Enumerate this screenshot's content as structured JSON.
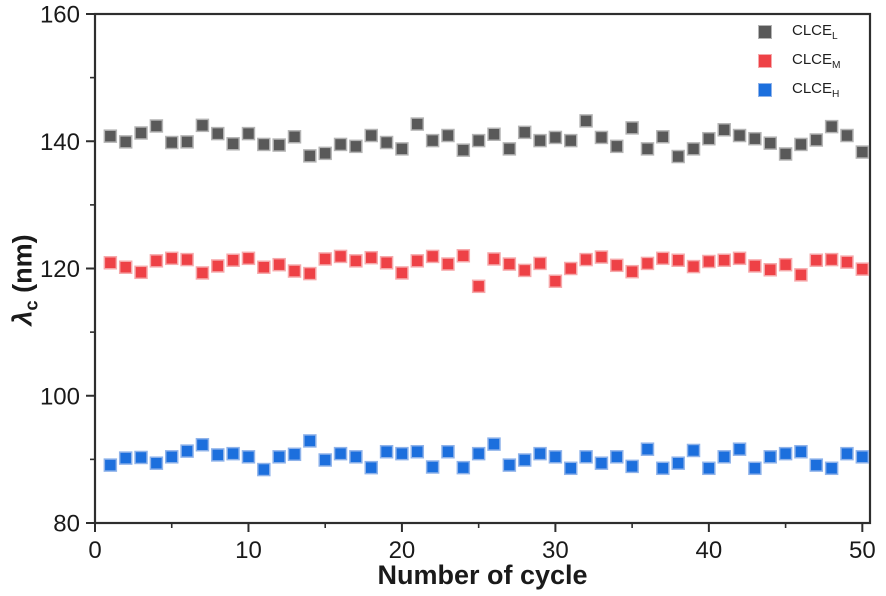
{
  "figure": {
    "background": "#ffffff",
    "text_color": "#1a1a1a",
    "frame_color": "#2e2e2e"
  },
  "axes": {
    "xlabel": "Number of cycle",
    "ylabel_symbol": "λ",
    "ylabel_sub": "c",
    "ylabel_suffix": " (nm)"
  },
  "chart_data": {
    "type": "scatter",
    "title": "",
    "xlabel": "Number of cycle",
    "ylabel": "λc (nm)",
    "xlim": [
      0,
      50.5
    ],
    "ylim": [
      80,
      160
    ],
    "x_major_ticks": [
      0,
      10,
      20,
      30,
      40,
      50
    ],
    "x_minor_step": 5,
    "y_major_ticks": [
      80,
      100,
      120,
      140,
      160
    ],
    "y_minor_step": 10,
    "grid": false,
    "legend_position": "top-right",
    "marker": "square",
    "marker_size_px": 12,
    "x_start": 1,
    "x_step": 1,
    "n_points": 50,
    "series": [
      {
        "name": "CLCE",
        "subscript": "L",
        "color": "#595959",
        "edge_color": "#b4b4b4",
        "values": [
          140.8,
          139.9,
          141.3,
          142.4,
          139.8,
          139.9,
          142.5,
          141.2,
          139.6,
          141.2,
          139.5,
          139.4,
          140.7,
          137.7,
          138.1,
          139.5,
          139.2,
          140.9,
          139.8,
          138.8,
          142.7,
          140.1,
          140.9,
          138.6,
          140.1,
          141.1,
          138.8,
          141.4,
          140.1,
          140.6,
          140.1,
          143.2,
          140.6,
          139.2,
          142.1,
          138.8,
          140.7,
          137.6,
          138.8,
          140.4,
          141.8,
          140.9,
          140.4,
          139.7,
          138.0,
          139.5,
          140.2,
          142.3,
          140.9,
          138.3
        ]
      },
      {
        "name": "CLCE",
        "subscript": "M",
        "color": "#ee4146",
        "edge_color": "#f6a9ab",
        "values": [
          120.9,
          120.2,
          119.4,
          121.2,
          121.6,
          121.4,
          119.3,
          120.4,
          121.3,
          121.6,
          120.2,
          120.6,
          119.6,
          119.2,
          121.5,
          121.9,
          121.2,
          121.7,
          120.9,
          119.3,
          121.2,
          121.9,
          120.7,
          122.0,
          117.2,
          121.5,
          120.7,
          119.7,
          120.8,
          118.0,
          120.0,
          121.4,
          121.8,
          120.5,
          119.5,
          120.8,
          121.6,
          121.3,
          120.3,
          121.1,
          121.3,
          121.6,
          120.4,
          119.8,
          120.6,
          119.0,
          121.3,
          121.4,
          121.0,
          119.9
        ]
      },
      {
        "name": "CLCE",
        "subscript": "H",
        "color": "#1c6fdd",
        "edge_color": "#8fb3ea",
        "values": [
          89.1,
          90.2,
          90.3,
          89.4,
          90.4,
          91.3,
          92.3,
          90.7,
          90.9,
          90.4,
          88.4,
          90.4,
          90.8,
          92.9,
          89.9,
          90.9,
          90.4,
          88.7,
          91.2,
          90.9,
          91.2,
          88.8,
          91.2,
          88.7,
          90.9,
          92.4,
          89.1,
          89.9,
          90.9,
          90.4,
          88.6,
          90.4,
          89.4,
          90.4,
          88.9,
          91.6,
          88.6,
          89.4,
          91.4,
          88.6,
          90.4,
          91.6,
          88.6,
          90.4,
          90.9,
          91.2,
          89.1,
          88.6,
          90.9,
          90.4
        ]
      }
    ]
  }
}
